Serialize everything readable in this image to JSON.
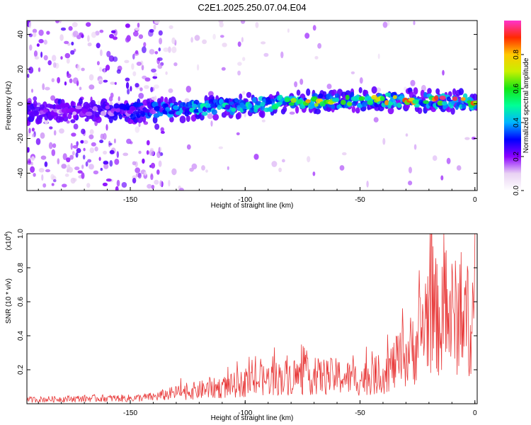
{
  "title": "C2E1.2025.250.07.04.E04",
  "chart_data": [
    {
      "type": "heatmap",
      "title": "C2E1.2025.250.07.04.E04",
      "xlabel": "Height of straight line (km)",
      "ylabel": "Frequency (Hz)",
      "xlim": [
        -195,
        1
      ],
      "ylim": [
        -50,
        48
      ],
      "xticks": [
        -150,
        -100,
        -50,
        0
      ],
      "xtick_labels": [
        "-150",
        "-100",
        "-50",
        "0"
      ],
      "yticks": [
        -40,
        -20,
        0,
        20,
        40
      ],
      "ytick_labels": [
        "-40",
        "-20",
        "0",
        "20",
        "40"
      ],
      "ridge": {
        "x": [
          -195,
          -175,
          -150,
          -125,
          -100,
          -75,
          -50,
          -25,
          0
        ],
        "frequency": [
          -5,
          -4,
          -4,
          -3,
          -1,
          1,
          2,
          2,
          1
        ],
        "normalized_amplitude": [
          0.25,
          0.2,
          0.3,
          0.45,
          0.55,
          0.8,
          0.7,
          0.9,
          0.95
        ]
      },
      "colorbar": {
        "label": "Normalized spectral amplitude",
        "range": [
          0,
          1
        ],
        "ticks": [
          0,
          0.2,
          0.4,
          0.6,
          0.8
        ],
        "tick_labels": [
          "0.0",
          "0.2",
          "0.4",
          "0.6",
          "0.8"
        ]
      },
      "grid": false
    },
    {
      "type": "line",
      "xlabel": "Height of straight line (km)",
      "ylabel": "SNR (10 * v/v)",
      "ylabel_exponent": "(x10",
      "ylabel_exponent_power": "4",
      "ylabel_exponent_close": ")",
      "xlim": [
        -195,
        1
      ],
      "ylim": [
        0,
        1.0
      ],
      "xticks": [
        -150,
        -100,
        -50,
        0
      ],
      "xtick_labels": [
        "-150",
        "-100",
        "-50",
        "0"
      ],
      "yticks": [
        0.2,
        0.4,
        0.6,
        0.8,
        1.0
      ],
      "ytick_labels": [
        "0.2",
        "0.4",
        "0.6",
        "0.8",
        "1.0"
      ],
      "series": [
        {
          "color": "#e83a3a",
          "x": [
            -195,
            -180,
            -165,
            -150,
            -140,
            -130,
            -120,
            -110,
            -100,
            -90,
            -80,
            -70,
            -60,
            -50,
            -40,
            -30,
            -25,
            -20,
            -15,
            -10,
            -5,
            0
          ],
          "y": [
            0.03,
            0.035,
            0.04,
            0.04,
            0.05,
            0.08,
            0.1,
            0.12,
            0.15,
            0.18,
            0.2,
            0.2,
            0.2,
            0.18,
            0.22,
            0.35,
            0.45,
            0.7,
            0.6,
            0.65,
            0.6,
            0.65
          ]
        }
      ],
      "grid": false
    }
  ]
}
